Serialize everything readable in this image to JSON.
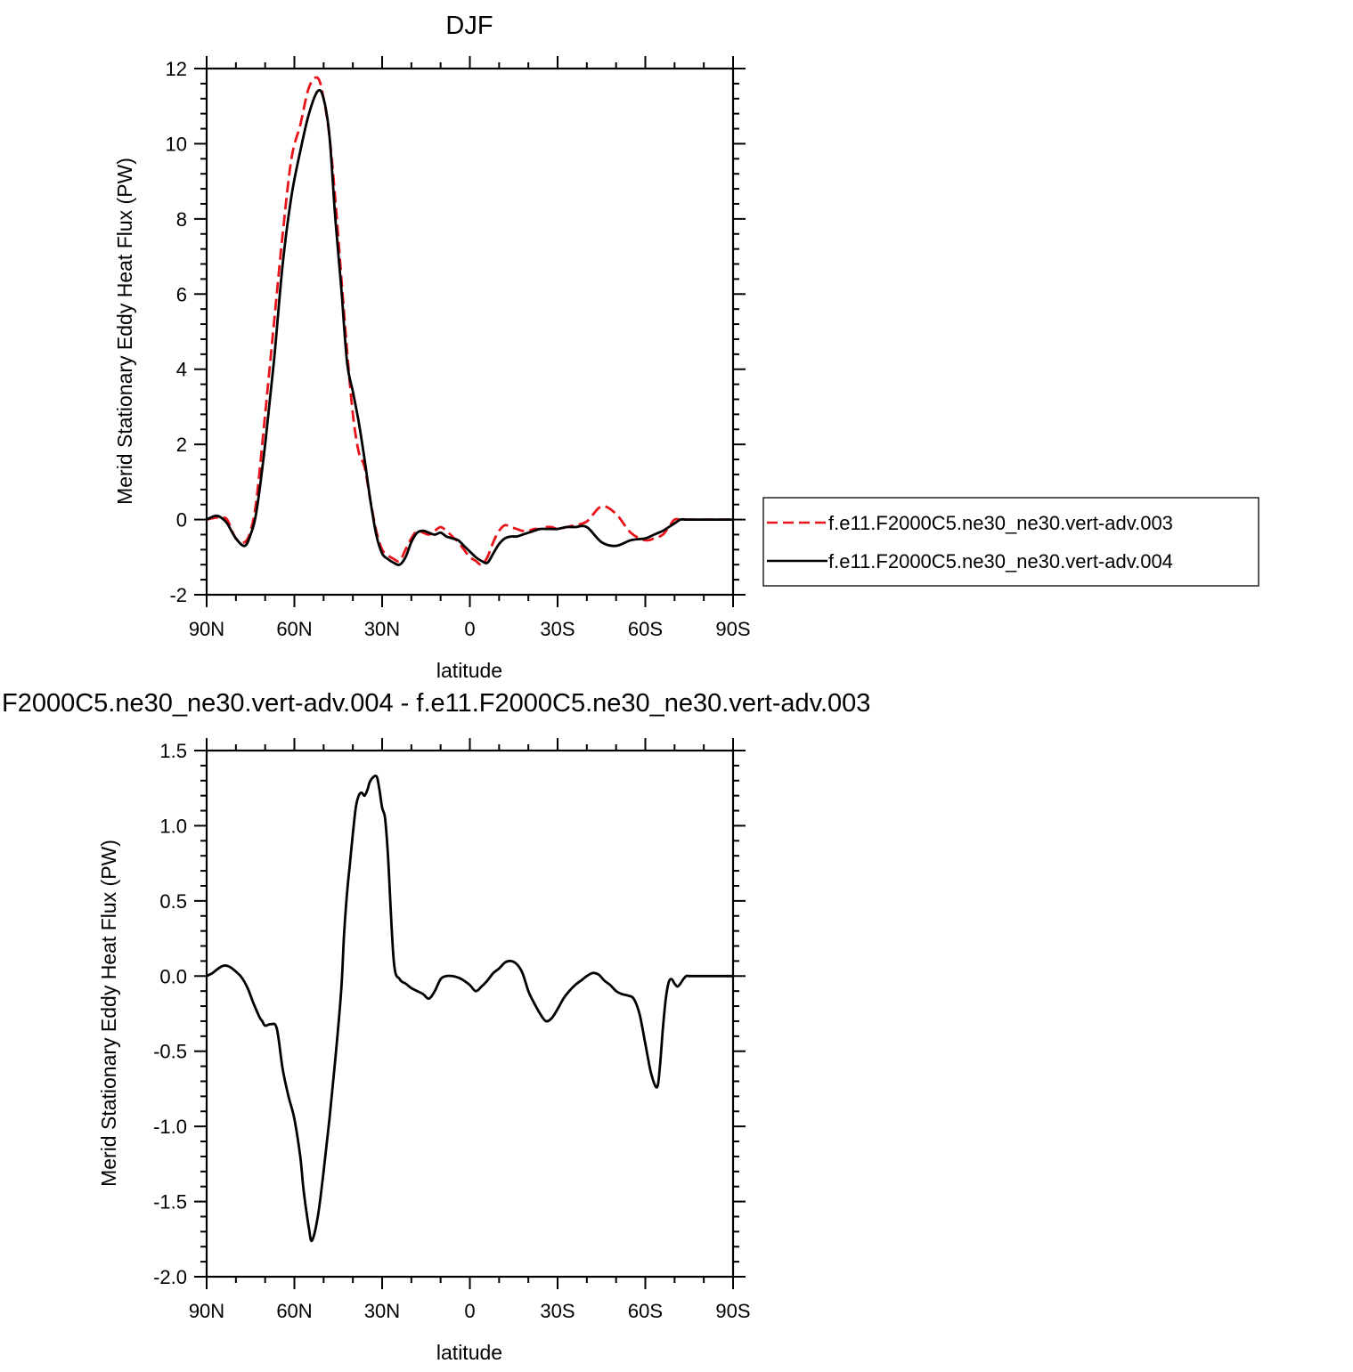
{
  "chart_data": [
    {
      "type": "line",
      "title": "DJF",
      "xlabel": "latitude",
      "ylabel": "Merid Stationary Eddy Heat Flux (PW)",
      "xlim": [
        90,
        -90
      ],
      "ylim": [
        -2,
        12
      ],
      "xticks": [
        {
          "value": 90,
          "label": "90N"
        },
        {
          "value": 60,
          "label": "60N"
        },
        {
          "value": 30,
          "label": "30N"
        },
        {
          "value": 0,
          "label": "0"
        },
        {
          "value": -30,
          "label": "30S"
        },
        {
          "value": -60,
          "label": "60S"
        },
        {
          "value": -90,
          "label": "90S"
        }
      ],
      "yticks": [
        {
          "value": 12,
          "label": "12"
        },
        {
          "value": 10,
          "label": "10"
        },
        {
          "value": 8,
          "label": "8"
        },
        {
          "value": 6,
          "label": "6"
        },
        {
          "value": 4,
          "label": "4"
        },
        {
          "value": 2,
          "label": "2"
        },
        {
          "value": 0,
          "label": "0"
        },
        {
          "value": -2,
          "label": "-2"
        }
      ],
      "legend_position": "right",
      "series": [
        {
          "name": "f.e11.F2000C5.ne30_ne30.vert-adv.003",
          "color": "#e8141c",
          "dash": "dashed",
          "x": [
            90,
            87,
            85,
            83,
            80,
            77,
            75,
            73,
            70,
            67,
            64,
            61,
            58,
            55,
            52,
            50,
            48,
            46,
            44,
            42,
            40,
            38,
            36,
            34,
            32,
            30,
            28,
            26,
            24,
            22,
            20,
            18,
            16,
            14,
            12,
            10,
            8,
            6,
            4,
            2,
            0,
            -2,
            -4,
            -6,
            -8,
            -10,
            -12,
            -14,
            -16,
            -18,
            -20,
            -22,
            -24,
            -26,
            -28,
            -30,
            -33,
            -36,
            -40,
            -45,
            -50,
            -55,
            -60,
            -63,
            -66,
            -68,
            -70,
            -72,
            -74,
            -76,
            -78,
            -81,
            -84,
            -87,
            -90
          ],
          "y": [
            0,
            0.05,
            0.05,
            0,
            -0.5,
            -0.6,
            -0.3,
            0.5,
            2.8,
            5.2,
            7.6,
            9.6,
            10.5,
            11.5,
            11.75,
            11.2,
            10.2,
            8.5,
            6.5,
            4.5,
            2.8,
            1.8,
            1.4,
            0.5,
            -0.3,
            -0.8,
            -0.95,
            -1.05,
            -1.1,
            -0.8,
            -0.5,
            -0.3,
            -0.35,
            -0.4,
            -0.3,
            -0.2,
            -0.3,
            -0.45,
            -0.6,
            -0.8,
            -1.0,
            -1.1,
            -1.2,
            -1.0,
            -0.6,
            -0.3,
            -0.15,
            -0.2,
            -0.25,
            -0.3,
            -0.3,
            -0.25,
            -0.25,
            -0.2,
            -0.2,
            -0.25,
            -0.2,
            -0.15,
            -0.05,
            0.35,
            0.15,
            -0.35,
            -0.55,
            -0.5,
            -0.4,
            -0.2,
            0,
            0,
            0,
            0,
            0,
            0,
            0,
            0,
            0
          ]
        },
        {
          "name": "f.e11.F2000C5.ne30_ne30.vert-adv.004",
          "color": "#000000",
          "dash": "solid",
          "x": [
            90,
            87,
            85,
            83,
            80,
            77,
            75,
            73,
            70,
            67,
            64,
            61,
            58,
            55,
            52,
            50,
            48,
            46,
            44,
            42,
            40,
            38,
            36,
            34,
            32,
            30,
            28,
            26,
            24,
            22,
            20,
            18,
            16,
            14,
            12,
            10,
            8,
            6,
            4,
            2,
            0,
            -2,
            -4,
            -6,
            -8,
            -10,
            -12,
            -14,
            -16,
            -18,
            -20,
            -22,
            -24,
            -26,
            -28,
            -30,
            -33,
            -36,
            -40,
            -45,
            -50,
            -55,
            -60,
            -63,
            -66,
            -68,
            -70,
            -72,
            -74,
            -76,
            -78,
            -81,
            -84,
            -87,
            -90
          ],
          "y": [
            0,
            0.1,
            0.05,
            -0.1,
            -0.5,
            -0.7,
            -0.4,
            0.2,
            2.0,
            4.2,
            6.8,
            8.6,
            9.8,
            10.8,
            11.4,
            11.2,
            10.2,
            8.0,
            6.2,
            4.2,
            3.4,
            2.6,
            1.6,
            0.5,
            -0.4,
            -0.9,
            -1.05,
            -1.15,
            -1.2,
            -1.0,
            -0.6,
            -0.35,
            -0.3,
            -0.35,
            -0.4,
            -0.35,
            -0.45,
            -0.5,
            -0.55,
            -0.7,
            -0.85,
            -1.0,
            -1.1,
            -1.15,
            -0.9,
            -0.65,
            -0.5,
            -0.45,
            -0.45,
            -0.4,
            -0.35,
            -0.3,
            -0.25,
            -0.25,
            -0.25,
            -0.25,
            -0.2,
            -0.2,
            -0.2,
            -0.6,
            -0.7,
            -0.55,
            -0.5,
            -0.4,
            -0.3,
            -0.2,
            -0.1,
            0,
            0,
            0,
            0,
            0,
            0,
            0,
            0
          ]
        }
      ]
    },
    {
      "type": "line",
      "title": "F2000C5.ne30_ne30.vert-adv.004 - f.e11.F2000C5.ne30_ne30.vert-adv.003",
      "xlabel": "latitude",
      "ylabel": "Merid Stationary Eddy Heat Flux (PW)",
      "xlim": [
        90,
        -90
      ],
      "ylim": [
        -2.0,
        1.5
      ],
      "xticks": [
        {
          "value": 90,
          "label": "90N"
        },
        {
          "value": 60,
          "label": "60N"
        },
        {
          "value": 30,
          "label": "30N"
        },
        {
          "value": 0,
          "label": "0"
        },
        {
          "value": -30,
          "label": "30S"
        },
        {
          "value": -60,
          "label": "60S"
        },
        {
          "value": -90,
          "label": "90S"
        }
      ],
      "yticks": [
        {
          "value": 1.5,
          "label": "1.5"
        },
        {
          "value": 1.0,
          "label": "1.0"
        },
        {
          "value": 0.5,
          "label": "0.5"
        },
        {
          "value": 0.0,
          "label": "0.0"
        },
        {
          "value": -0.5,
          "label": "-0.5"
        },
        {
          "value": -1.0,
          "label": "-1.0"
        },
        {
          "value": -1.5,
          "label": "-1.5"
        },
        {
          "value": -2.0,
          "label": "-2.0"
        }
      ],
      "series": [
        {
          "color": "#000000",
          "dash": "solid",
          "x": [
            90,
            88,
            86,
            84,
            82,
            80,
            78,
            76,
            74,
            72,
            71,
            70,
            68,
            66,
            64,
            62,
            60,
            58,
            57,
            56,
            55,
            54,
            52,
            50,
            48,
            46,
            44,
            43,
            42,
            41,
            40,
            39,
            38,
            37,
            36,
            35,
            34,
            32,
            31,
            30,
            29,
            28,
            26,
            24,
            22,
            20,
            18,
            16,
            14,
            12,
            10,
            8,
            6,
            4,
            2,
            0,
            -2,
            -4,
            -6,
            -8,
            -10,
            -12,
            -14,
            -16,
            -18,
            -20,
            -22,
            -24,
            -26,
            -28,
            -30,
            -32,
            -34,
            -36,
            -38,
            -40,
            -42,
            -44,
            -46,
            -48,
            -50,
            -52,
            -54,
            -56,
            -58,
            -60,
            -62,
            -64,
            -65,
            -66,
            -67,
            -68,
            -69,
            -70,
            -71,
            -72,
            -73,
            -74,
            -75,
            -76,
            -77,
            -78,
            -80,
            -82,
            -84,
            -86,
            -88,
            -90
          ],
          "y": [
            0,
            0.02,
            0.05,
            0.07,
            0.06,
            0.03,
            -0.01,
            -0.08,
            -0.18,
            -0.27,
            -0.3,
            -0.33,
            -0.32,
            -0.35,
            -0.62,
            -0.8,
            -0.95,
            -1.2,
            -1.4,
            -1.55,
            -1.68,
            -1.76,
            -1.6,
            -1.3,
            -0.95,
            -0.55,
            -0.1,
            0.28,
            0.55,
            0.75,
            0.95,
            1.12,
            1.2,
            1.22,
            1.2,
            1.24,
            1.3,
            1.33,
            1.25,
            1.12,
            1.05,
            0.8,
            0.1,
            -0.02,
            -0.05,
            -0.08,
            -0.1,
            -0.12,
            -0.15,
            -0.1,
            -0.02,
            0,
            0,
            -0.01,
            -0.03,
            -0.06,
            -0.1,
            -0.07,
            -0.03,
            0.02,
            0.05,
            0.09,
            0.1,
            0.08,
            0.02,
            -0.1,
            -0.18,
            -0.25,
            -0.3,
            -0.28,
            -0.22,
            -0.15,
            -0.1,
            -0.06,
            -0.03,
            0,
            0.02,
            0.01,
            -0.03,
            -0.06,
            -0.1,
            -0.12,
            -0.13,
            -0.15,
            -0.25,
            -0.45,
            -0.65,
            -0.74,
            -0.6,
            -0.35,
            -0.15,
            -0.04,
            -0.02,
            -0.05,
            -0.07,
            -0.05,
            -0.02,
            0,
            0,
            0,
            0,
            0,
            0,
            0,
            0,
            0,
            0,
            0
          ]
        }
      ]
    }
  ]
}
